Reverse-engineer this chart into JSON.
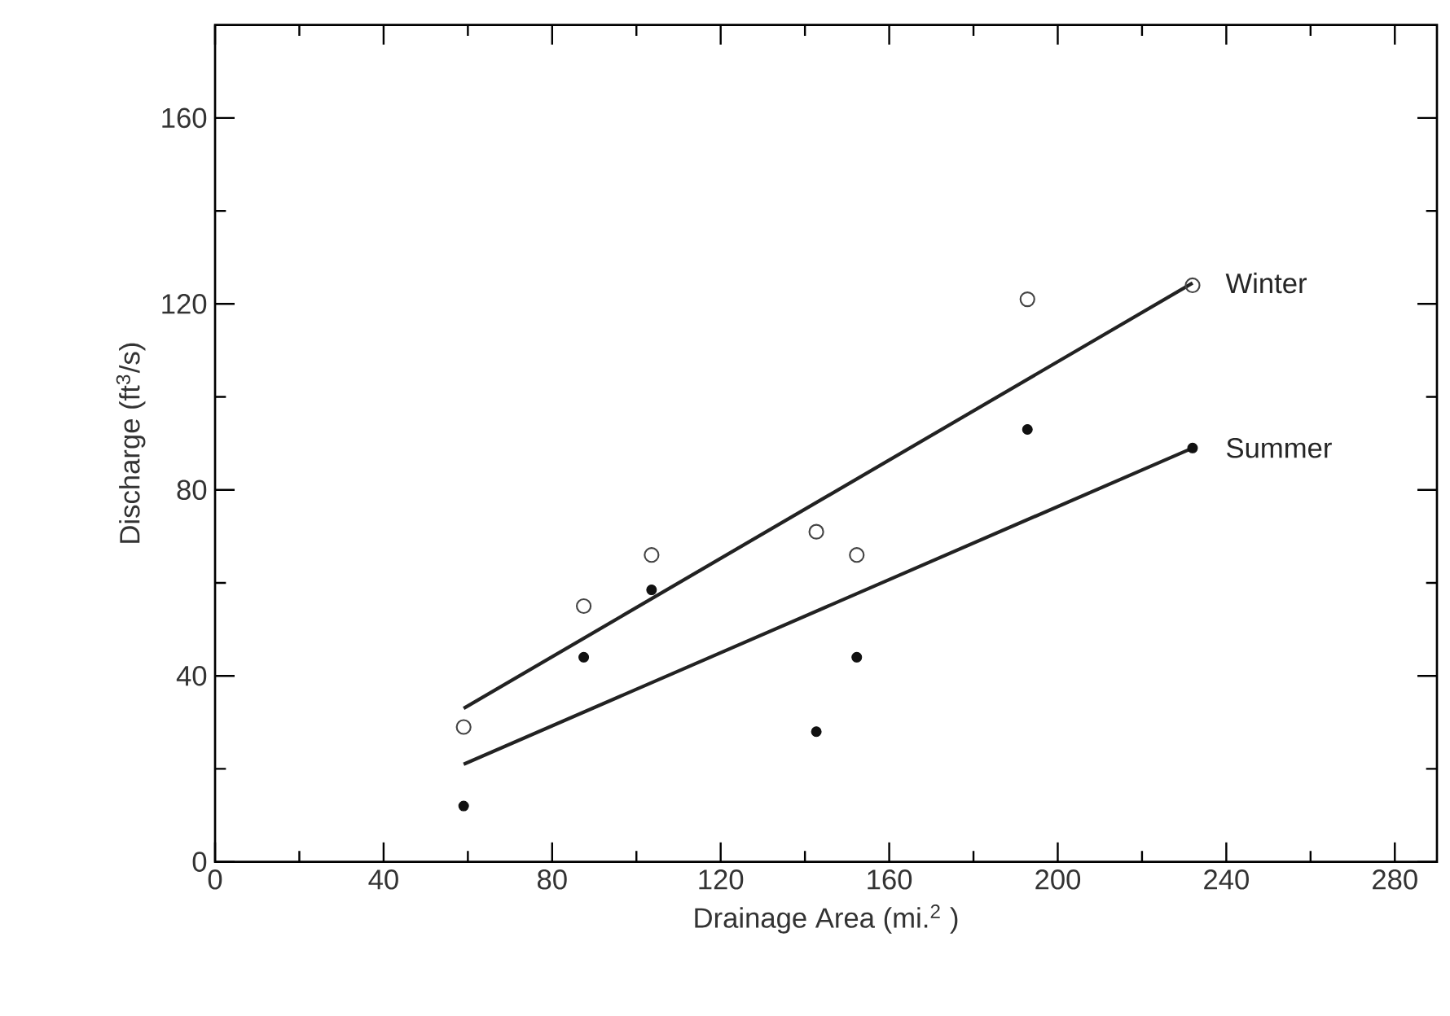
{
  "chart_data": {
    "type": "scatter",
    "xlabel": "Drainage Area (mi.$^{2}$ )",
    "ylabel": "Discharge (ft$^{3}$/s)",
    "xlim": [
      0,
      290
    ],
    "ylim": [
      0,
      180
    ],
    "xticks": [
      0,
      40,
      80,
      120,
      160,
      200,
      240,
      280
    ],
    "yticks": [
      0,
      40,
      80,
      120,
      160
    ],
    "grid": false,
    "marker": "circle",
    "series": [
      {
        "color": "#444444",
        "x": [
          59,
          87.5,
          103.6,
          142.7,
          152.3,
          192.8,
          232
        ],
        "values": [
          29,
          55,
          66,
          71,
          66,
          121,
          124
        ]
      },
      {
        "color": "#111111",
        "x": [
          59,
          87.5,
          103.6,
          142.7,
          152.3,
          192.8,
          232
        ],
        "values": [
          12,
          44,
          58.5,
          28,
          44,
          93,
          89
        ]
      },
      {
        "type": "line",
        "name": "Winter",
        "color": "#222222",
        "x": [
          59,
          232
        ],
        "values": [
          33,
          124.5
        ],
        "line_style": "solid",
        "marker": "none"
      },
      {
        "type": "line",
        "name": "Summer",
        "color": "#222222",
        "x": [
          59,
          232
        ],
        "values": [
          21,
          89
        ],
        "line_style": "solid",
        "marker": "none"
      }
    ]
  }
}
